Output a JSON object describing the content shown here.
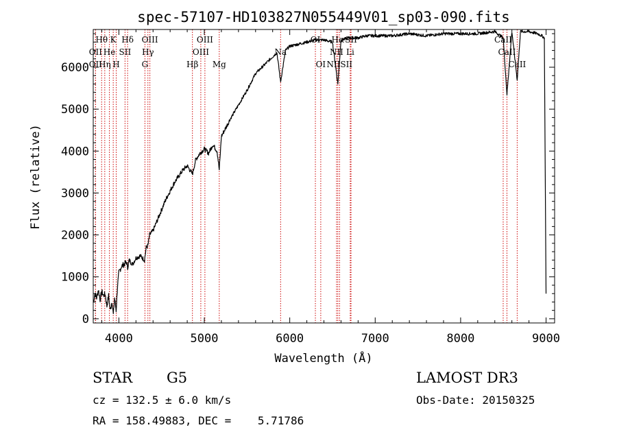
{
  "chart_data": {
    "type": "line",
    "title": "spec-57107-HD103827N055449V01_sp03-090.fits",
    "xlabel": "Wavelength (Å)",
    "ylabel": "Flux (relative)",
    "xlim": [
      3700,
      9100
    ],
    "ylim": [
      -100,
      6900
    ],
    "x_ticks": [
      4000,
      5000,
      6000,
      7000,
      8000,
      9000
    ],
    "y_ticks": [
      0,
      1000,
      2000,
      3000,
      4000,
      5000,
      6000
    ],
    "line_color": "#000000",
    "marker_color": "#cc0000",
    "series": [
      {
        "name": "spectrum",
        "x": [
          3700,
          3720,
          3740,
          3760,
          3780,
          3800,
          3820,
          3840,
          3860,
          3880,
          3900,
          3920,
          3935,
          3950,
          3968,
          3985,
          4000,
          4030,
          4060,
          4090,
          4102,
          4120,
          4160,
          4200,
          4250,
          4300,
          4320,
          4340,
          4360,
          4400,
          4450,
          4500,
          4550,
          4600,
          4650,
          4700,
          4750,
          4800,
          4861,
          4900,
          4950,
          5000,
          5050,
          5100,
          5150,
          5175,
          5200,
          5300,
          5400,
          5500,
          5600,
          5700,
          5800,
          5850,
          5893,
          5950,
          6000,
          6100,
          6200,
          6300,
          6400,
          6500,
          6563,
          6600,
          6700,
          6800,
          6900,
          7000,
          7200,
          7400,
          7600,
          7800,
          8000,
          8200,
          8400,
          8498,
          8542,
          8600,
          8662,
          8700,
          8800,
          8900,
          8950,
          8980,
          9000
        ],
        "y": [
          380,
          600,
          500,
          700,
          450,
          650,
          550,
          600,
          300,
          550,
          200,
          420,
          100,
          500,
          200,
          800,
          1100,
          1250,
          1300,
          1350,
          1200,
          1400,
          1300,
          1450,
          1500,
          1400,
          1700,
          1750,
          2000,
          2100,
          2350,
          2600,
          2850,
          3050,
          3250,
          3400,
          3550,
          3650,
          3450,
          3800,
          3950,
          4050,
          3950,
          4150,
          4000,
          3550,
          4350,
          4750,
          5100,
          5450,
          5850,
          6050,
          6250,
          6350,
          5650,
          6400,
          6500,
          6550,
          6600,
          6650,
          6650,
          6600,
          5600,
          6650,
          6700,
          6700,
          6750,
          6750,
          6750,
          6800,
          6750,
          6800,
          6800,
          6800,
          6850,
          6700,
          5350,
          6850,
          5700,
          6850,
          6850,
          6800,
          6750,
          6700,
          600
        ]
      }
    ],
    "lines": [
      {
        "label": "Hθ",
        "wavelength": 3798,
        "row": 0
      },
      {
        "label": "OII",
        "wavelength": 3727,
        "row": 1
      },
      {
        "label": "OII",
        "wavelength": 3727,
        "row": 2
      },
      {
        "label": "Hη",
        "wavelength": 3835,
        "row": 2
      },
      {
        "label": "He",
        "wavelength": 3889,
        "row": 1
      },
      {
        "label": "K",
        "wavelength": 3934,
        "row": 0
      },
      {
        "label": "SII",
        "wavelength": 4072,
        "row": 1
      },
      {
        "label": "H",
        "wavelength": 3969,
        "row": 2
      },
      {
        "label": "Hδ",
        "wavelength": 4102,
        "row": 0
      },
      {
        "label": "OIII",
        "wavelength": 4363,
        "row": 0
      },
      {
        "label": "Hγ",
        "wavelength": 4340,
        "row": 1
      },
      {
        "label": "G",
        "wavelength": 4305,
        "row": 2
      },
      {
        "label": "Hβ",
        "wavelength": 4861,
        "row": 2
      },
      {
        "label": "OIII",
        "wavelength": 5007,
        "row": 0
      },
      {
        "label": "OIII",
        "wavelength": 4959,
        "row": 1
      },
      {
        "label": "Mg",
        "wavelength": 5175,
        "row": 2
      },
      {
        "label": "Na",
        "wavelength": 5893,
        "row": 1
      },
      {
        "label": "OI",
        "wavelength": 6300,
        "row": 0
      },
      {
        "label": "OI",
        "wavelength": 6363,
        "row": 2
      },
      {
        "label": "Hα",
        "wavelength": 6563,
        "row": 0
      },
      {
        "label": "NII",
        "wavelength": 6548,
        "row": 1
      },
      {
        "label": "SII",
        "wavelength": 6717,
        "row": 0
      },
      {
        "label": "Li",
        "wavelength": 6708,
        "row": 1
      },
      {
        "label": "NIISII",
        "wavelength": 6583,
        "row": 2
      },
      {
        "label": "CaII",
        "wavelength": 8498,
        "row": 0
      },
      {
        "label": "CaII",
        "wavelength": 8542,
        "row": 1
      },
      {
        "label": "CaII",
        "wavelength": 8662,
        "row": 2
      }
    ]
  },
  "info": {
    "object_class": "STAR",
    "subclass": "G5",
    "survey": "LAMOST DR3",
    "cz": "cz = 132.5 ± 6.0 km/s",
    "obs_date": "Obs-Date: 20150325",
    "coords": "RA = 158.49883, DEC =    5.71786"
  }
}
